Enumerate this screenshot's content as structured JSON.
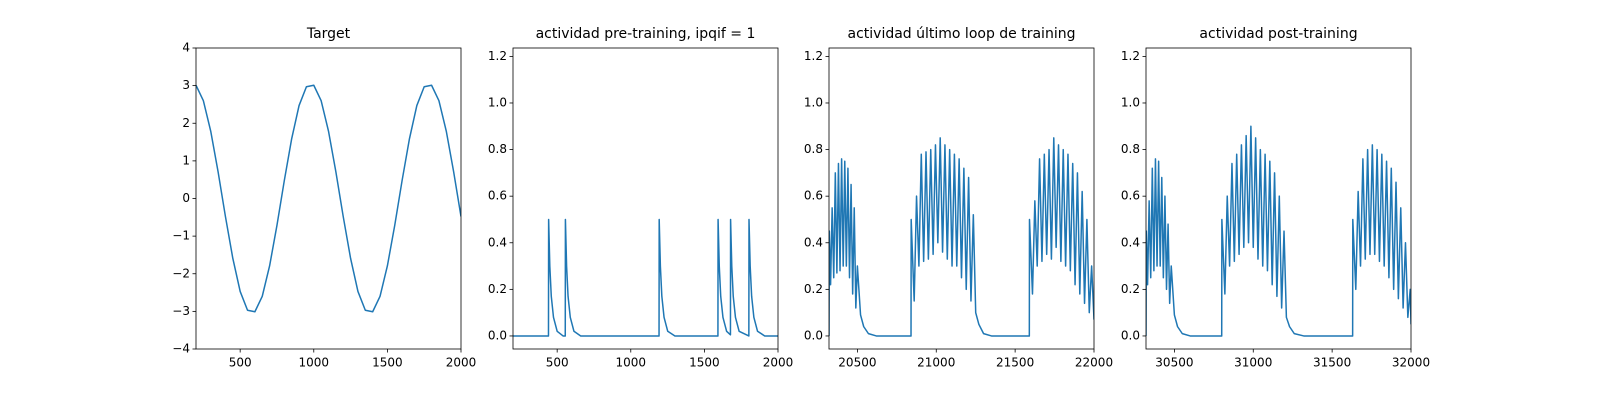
{
  "chart_data": [
    {
      "type": "line",
      "title": "Target",
      "color": "#1f77b4",
      "x": [
        200,
        250,
        300,
        350,
        400,
        450,
        500,
        550,
        600,
        650,
        700,
        750,
        800,
        850,
        900,
        950,
        1000,
        1050,
        1100,
        1150,
        1200,
        1250,
        1300,
        1350,
        1400,
        1450,
        1500,
        1550,
        1600,
        1650,
        1700,
        1750,
        1800,
        1850,
        1900,
        1950,
        2000
      ],
      "values": [
        3.01,
        2.6,
        1.79,
        0.71,
        -0.48,
        -1.59,
        -2.47,
        -2.97,
        -3.01,
        -2.6,
        -1.79,
        -0.71,
        0.48,
        1.59,
        2.47,
        2.97,
        3.01,
        2.6,
        1.79,
        0.71,
        -0.48,
        -1.59,
        -2.47,
        -2.97,
        -3.01,
        -2.6,
        -1.79,
        -0.71,
        0.48,
        1.59,
        2.47,
        2.97,
        3.01,
        2.6,
        1.79,
        0.71,
        -0.48
      ],
      "xlim": [
        200,
        2000
      ],
      "xticks": [
        500,
        1000,
        1500,
        2000
      ],
      "ylim": [
        -4,
        4
      ],
      "yticks": [
        {
          "value": -4,
          "label": "−4"
        },
        {
          "value": -3,
          "label": "−3"
        },
        {
          "value": -2,
          "label": "−2"
        },
        {
          "value": -1,
          "label": "−1"
        },
        0,
        1,
        2,
        3,
        4
      ]
    },
    {
      "type": "line",
      "title": "actividad pre-training, ipqif = 1",
      "color": "#1f77b4",
      "x": [
        200,
        441,
        442,
        450,
        460,
        475,
        500,
        540,
        555,
        556,
        564,
        574,
        589,
        614,
        660,
        1192,
        1193,
        1201,
        1211,
        1226,
        1251,
        1300,
        1592,
        1593,
        1601,
        1611,
        1626,
        1651,
        1677,
        1678,
        1686,
        1696,
        1711,
        1736,
        1802,
        1803,
        1811,
        1821,
        1836,
        1861,
        1910,
        2000
      ],
      "values": [
        0,
        0,
        0.5,
        0.3,
        0.17,
        0.08,
        0.02,
        0,
        0,
        0.5,
        0.3,
        0.17,
        0.08,
        0.02,
        0,
        0,
        0.5,
        0.3,
        0.17,
        0.08,
        0.02,
        0,
        0,
        0.5,
        0.3,
        0.17,
        0.08,
        0.02,
        0.005,
        0.5,
        0.3,
        0.17,
        0.08,
        0.02,
        0,
        0.5,
        0.3,
        0.17,
        0.08,
        0.02,
        0,
        0
      ],
      "xlim": [
        200,
        2000
      ],
      "xticks": [
        500,
        1000,
        1500,
        2000
      ],
      "ylim": [
        -0.056,
        1.236
      ],
      "yticks": [
        {
          "value": 0,
          "label": "0.0"
        },
        0.2,
        0.4,
        0.6,
        0.8,
        {
          "value": 1,
          "label": "1.0"
        },
        1.2
      ]
    },
    {
      "type": "line",
      "title": "actividad último loop de training",
      "color": "#1f77b4",
      "x": [
        20320,
        20322,
        20330,
        20340,
        20350,
        20360,
        20370,
        20380,
        20390,
        20400,
        20410,
        20420,
        20430,
        20440,
        20450,
        20460,
        20470,
        20480,
        20490,
        20500,
        20520,
        20540,
        20570,
        20620,
        20840,
        20841,
        20860,
        20875,
        20890,
        20905,
        20920,
        20935,
        20950,
        20965,
        20980,
        20995,
        21010,
        21025,
        21040,
        21055,
        21070,
        21085,
        21100,
        21115,
        21130,
        21145,
        21160,
        21175,
        21190,
        21205,
        21220,
        21235,
        21250,
        21270,
        21300,
        21350,
        21590,
        21591,
        21610,
        21625,
        21640,
        21655,
        21670,
        21685,
        21700,
        21715,
        21730,
        21745,
        21760,
        21775,
        21790,
        21805,
        21820,
        21835,
        21850,
        21865,
        21880,
        21895,
        21910,
        21925,
        21940,
        21955,
        21970,
        21985,
        22000
      ],
      "values": [
        0,
        0.45,
        0.22,
        0.55,
        0.25,
        0.7,
        0.27,
        0.74,
        0.28,
        0.76,
        0.3,
        0.75,
        0.3,
        0.72,
        0.25,
        0.65,
        0.18,
        0.55,
        0.12,
        0.3,
        0.09,
        0.04,
        0.01,
        0,
        0,
        0.5,
        0.15,
        0.6,
        0.3,
        0.78,
        0.32,
        0.79,
        0.33,
        0.8,
        0.35,
        0.82,
        0.4,
        0.85,
        0.36,
        0.82,
        0.33,
        0.8,
        0.3,
        0.78,
        0.3,
        0.76,
        0.25,
        0.72,
        0.2,
        0.68,
        0.15,
        0.52,
        0.1,
        0.05,
        0.01,
        0,
        0,
        0.5,
        0.18,
        0.58,
        0.3,
        0.76,
        0.32,
        0.78,
        0.35,
        0.8,
        0.33,
        0.85,
        0.38,
        0.82,
        0.32,
        0.8,
        0.3,
        0.78,
        0.28,
        0.74,
        0.22,
        0.7,
        0.18,
        0.62,
        0.14,
        0.5,
        0.1,
        0.3,
        0.07
      ],
      "xlim": [
        20320,
        22000
      ],
      "xticks": [
        20500,
        21000,
        21500,
        22000
      ],
      "ylim": [
        -0.056,
        1.236
      ],
      "yticks": [
        {
          "value": 0,
          "label": "0.0"
        },
        0.2,
        0.4,
        0.6,
        0.8,
        {
          "value": 1,
          "label": "1.0"
        },
        1.2
      ]
    },
    {
      "type": "line",
      "title": "actividad post-training",
      "color": "#1f77b4",
      "x": [
        30320,
        30322,
        30330,
        30340,
        30350,
        30360,
        30370,
        30380,
        30390,
        30400,
        30410,
        30420,
        30430,
        30440,
        30450,
        30460,
        30470,
        30480,
        30500,
        30520,
        30550,
        30600,
        30800,
        30801,
        30820,
        30835,
        30850,
        30865,
        30880,
        30895,
        30910,
        30925,
        30940,
        30955,
        30970,
        30985,
        31000,
        31015,
        31030,
        31045,
        31060,
        31075,
        31090,
        31105,
        31120,
        31135,
        31150,
        31165,
        31180,
        31195,
        31210,
        31230,
        31260,
        31320,
        31630,
        31631,
        31650,
        31665,
        31680,
        31695,
        31710,
        31725,
        31740,
        31755,
        31770,
        31785,
        31800,
        31815,
        31830,
        31845,
        31860,
        31875,
        31890,
        31905,
        31920,
        31935,
        31950,
        31965,
        31980,
        31995,
        32000
      ],
      "values": [
        0,
        0.45,
        0.22,
        0.58,
        0.25,
        0.72,
        0.28,
        0.76,
        0.3,
        0.75,
        0.3,
        0.68,
        0.25,
        0.6,
        0.2,
        0.48,
        0.14,
        0.3,
        0.09,
        0.04,
        0.01,
        0,
        0,
        0.5,
        0.18,
        0.6,
        0.3,
        0.74,
        0.32,
        0.78,
        0.35,
        0.82,
        0.38,
        0.86,
        0.4,
        0.9,
        0.38,
        0.85,
        0.33,
        0.8,
        0.3,
        0.78,
        0.28,
        0.75,
        0.22,
        0.7,
        0.17,
        0.6,
        0.12,
        0.45,
        0.08,
        0.04,
        0.01,
        0,
        0,
        0.5,
        0.2,
        0.62,
        0.3,
        0.76,
        0.33,
        0.8,
        0.35,
        0.82,
        0.35,
        0.8,
        0.32,
        0.78,
        0.3,
        0.75,
        0.25,
        0.72,
        0.2,
        0.66,
        0.16,
        0.55,
        0.12,
        0.4,
        0.08,
        0.2,
        0.05
      ],
      "xlim": [
        30320,
        32000
      ],
      "xticks": [
        30500,
        31000,
        31500,
        32000
      ],
      "ylim": [
        -0.056,
        1.236
      ],
      "yticks": [
        {
          "value": 0,
          "label": "0.0"
        },
        0.2,
        0.4,
        0.6,
        0.8,
        {
          "value": 1,
          "label": "1.0"
        },
        1.2
      ]
    }
  ]
}
